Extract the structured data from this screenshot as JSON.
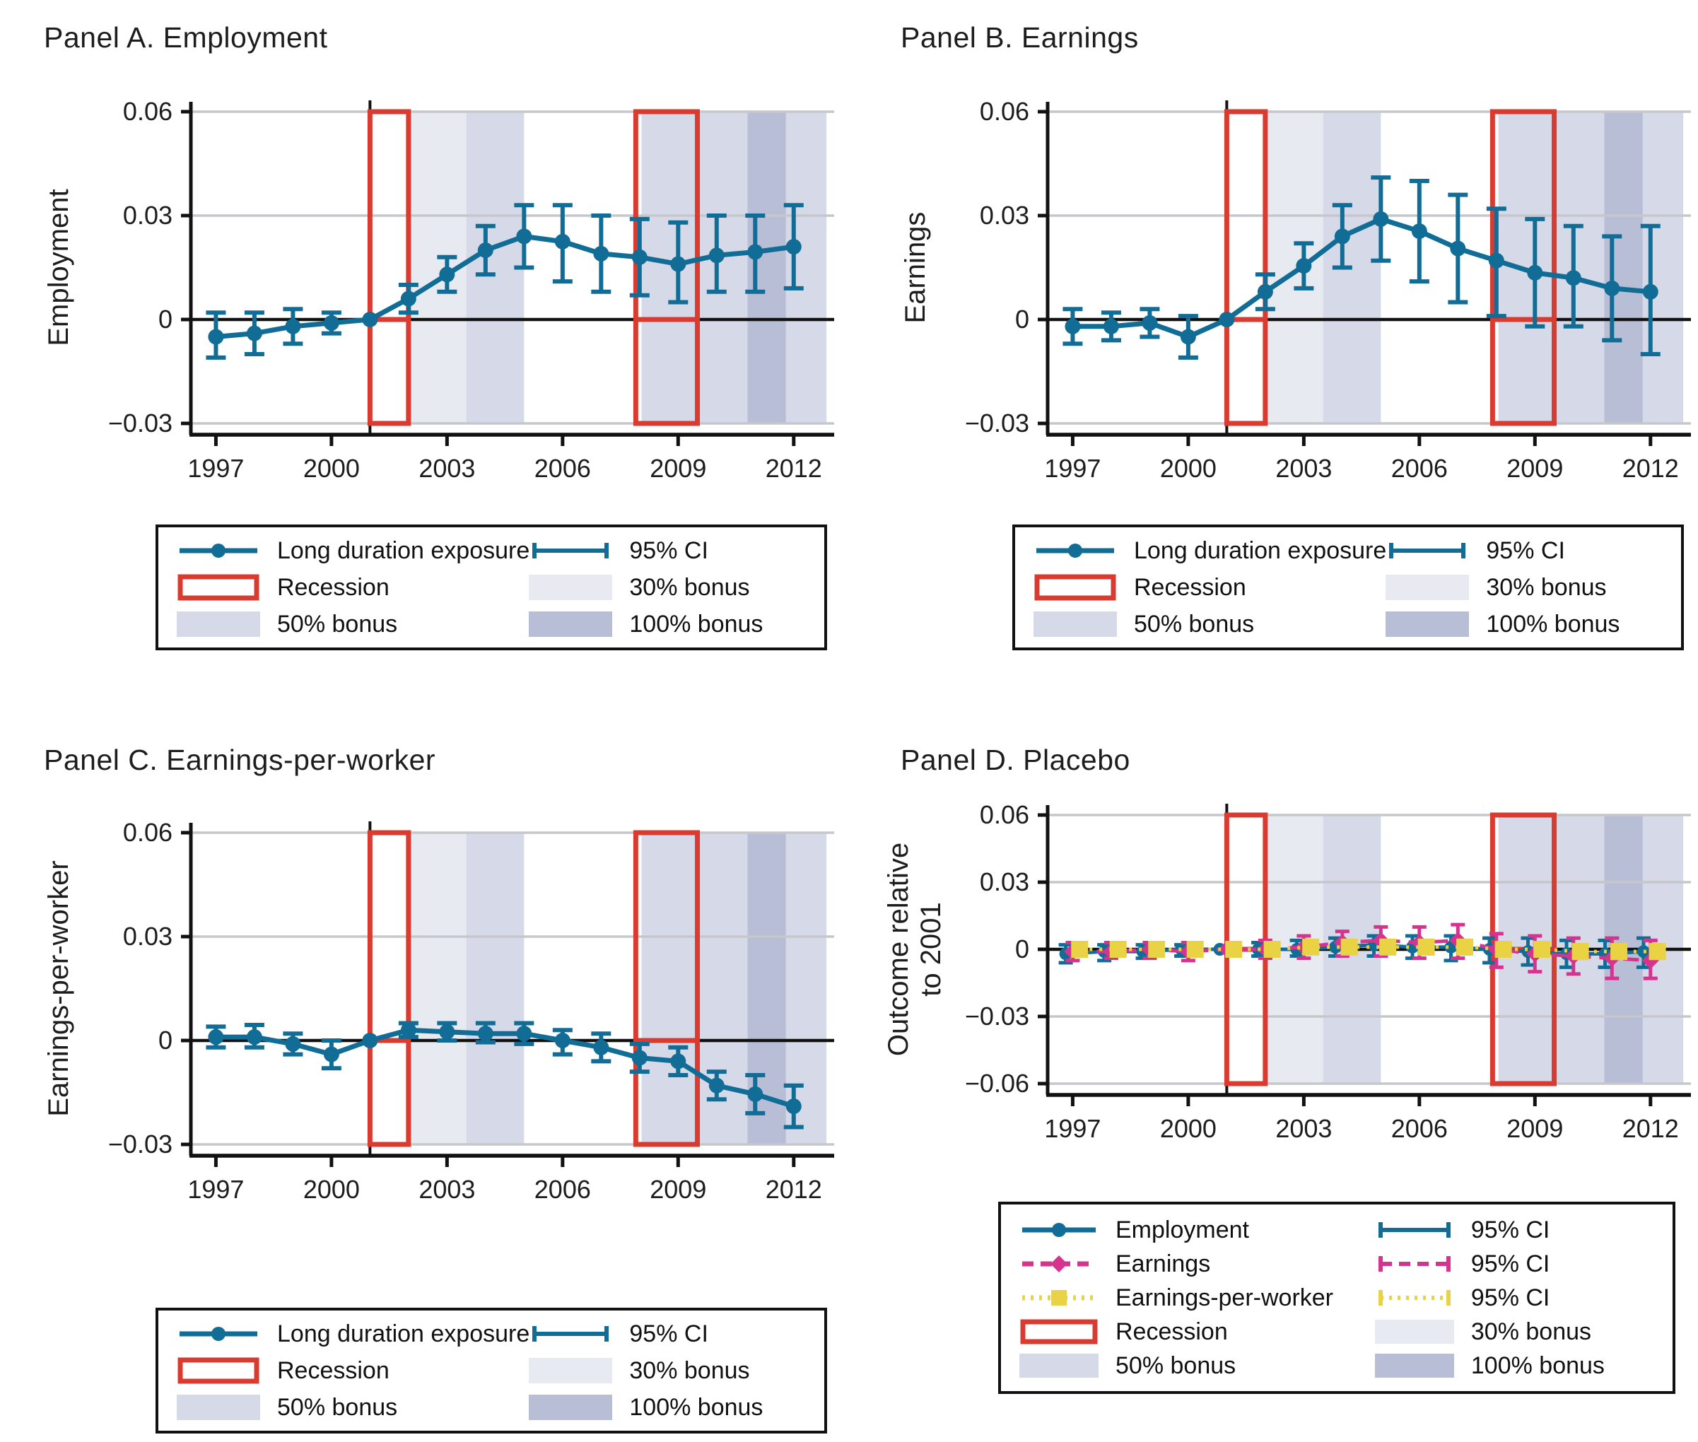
{
  "colors": {
    "blue": "#116d96",
    "red": "#d93b30",
    "magenta": "#d6338f",
    "yellow": "#e9d243",
    "bonus30": "#e8eaf1",
    "bonus50": "#d6d9e7",
    "bonus100": "#b8bed6",
    "grid": "#c6c7ca",
    "axis": "#111111",
    "text": "#1d1d1f"
  },
  "x_axis": {
    "ticks": [
      {
        "v": 1997,
        "label": "1997"
      },
      {
        "v": 2000,
        "label": "2000"
      },
      {
        "v": 2003,
        "label": "2003"
      },
      {
        "v": 2006,
        "label": "2006"
      },
      {
        "v": 2009,
        "label": "2009"
      },
      {
        "v": 2012,
        "label": "2012"
      }
    ],
    "min": 1996.35,
    "max": 2013.05,
    "reference_year": 2001
  },
  "panels": [
    {
      "id": "a",
      "chart_index": 0,
      "geom": "abc",
      "title": "Panel A. Employment",
      "ylabel_lines": [
        "Employment"
      ],
      "y_ticks": [
        {
          "v": 0.06,
          "label": "0.06"
        },
        {
          "v": 0.03,
          "label": "0.03"
        },
        {
          "v": 0,
          "label": "0"
        },
        {
          "v": -0.03,
          "label": "−0.03"
        }
      ],
      "legend_rows": [
        {
          "glyph": "series-blue",
          "label": "Long duration exposure"
        },
        {
          "glyph": "ci-blue",
          "label": "95% CI"
        },
        {
          "glyph": "recession",
          "label": "Recession"
        },
        {
          "glyph": "bonus30",
          "label": "30% bonus"
        },
        {
          "glyph": "bonus50",
          "label": "50% bonus"
        },
        {
          "glyph": "bonus100",
          "label": "100% bonus"
        }
      ]
    },
    {
      "id": "b",
      "chart_index": 1,
      "geom": "abc",
      "title": "Panel B. Earnings",
      "ylabel_lines": [
        "Earnings"
      ],
      "y_ticks": [
        {
          "v": 0.06,
          "label": "0.06"
        },
        {
          "v": 0.03,
          "label": "0.03"
        },
        {
          "v": 0,
          "label": "0"
        },
        {
          "v": -0.03,
          "label": "−0.03"
        }
      ],
      "legend_rows": [
        {
          "glyph": "series-blue",
          "label": "Long duration exposure"
        },
        {
          "glyph": "ci-blue",
          "label": "95% CI"
        },
        {
          "glyph": "recession",
          "label": "Recession"
        },
        {
          "glyph": "bonus30",
          "label": "30% bonus"
        },
        {
          "glyph": "bonus50",
          "label": "50% bonus"
        },
        {
          "glyph": "bonus100",
          "label": "100% bonus"
        }
      ]
    },
    {
      "id": "c",
      "chart_index": 2,
      "geom": "abc",
      "title": "Panel C. Earnings-per-worker",
      "ylabel_lines": [
        "Earnings-per-worker"
      ],
      "y_ticks": [
        {
          "v": 0.06,
          "label": "0.06"
        },
        {
          "v": 0.03,
          "label": "0.03"
        },
        {
          "v": 0,
          "label": "0"
        },
        {
          "v": -0.03,
          "label": "−0.03"
        }
      ],
      "legend_rows": [
        {
          "glyph": "series-blue",
          "label": "Long duration exposure"
        },
        {
          "glyph": "ci-blue",
          "label": "95% CI"
        },
        {
          "glyph": "recession",
          "label": "Recession"
        },
        {
          "glyph": "bonus30",
          "label": "30% bonus"
        },
        {
          "glyph": "bonus50",
          "label": "50% bonus"
        },
        {
          "glyph": "bonus100",
          "label": "100% bonus"
        }
      ]
    },
    {
      "id": "d",
      "chart_index": 3,
      "geom": "d",
      "title": "Panel D. Placebo",
      "ylabel_lines": [
        "Outcome relative",
        "to 2001"
      ],
      "y_ticks": [
        {
          "v": 0.06,
          "label": "0.06"
        },
        {
          "v": 0.03,
          "label": "0.03"
        },
        {
          "v": 0,
          "label": "0"
        },
        {
          "v": -0.03,
          "label": "−0.03"
        },
        {
          "v": -0.06,
          "label": "−0.06"
        }
      ],
      "legend_rows": [
        {
          "glyph": "series-blue",
          "label": "Employment"
        },
        {
          "glyph": "ci-blue",
          "label": "95% CI"
        },
        {
          "glyph": "series-magenta",
          "label": "Earnings"
        },
        {
          "glyph": "ci-magenta",
          "label": "95% CI"
        },
        {
          "glyph": "series-yellow",
          "label": "Earnings-per-worker"
        },
        {
          "glyph": "ci-yellow",
          "label": "95% CI"
        },
        {
          "glyph": "recession",
          "label": "Recession"
        },
        {
          "glyph": "bonus30",
          "label": "30% bonus"
        },
        {
          "glyph": "bonus50",
          "label": "50% bonus"
        },
        {
          "glyph": "bonus100",
          "label": "100% bonus"
        }
      ]
    }
  ],
  "chart_data": [
    {
      "type": "line",
      "title": "Panel A. Employment",
      "xlabel": "",
      "ylabel": "Employment",
      "x": [
        1997,
        1998,
        1999,
        2000,
        2001,
        2002,
        2003,
        2004,
        2005,
        2006,
        2007,
        2008,
        2009,
        2010,
        2011,
        2012
      ],
      "x_tick_labels": [
        "1997",
        "2000",
        "2003",
        "2006",
        "2009",
        "2012"
      ],
      "ylim": [
        -0.03,
        0.06
      ],
      "grid": true,
      "series": [
        {
          "name": "Long duration exposure",
          "color": "blue",
          "line": "solid",
          "marker": "circle",
          "dodge": 0,
          "values": [
            -0.005,
            -0.004,
            -0.002,
            -0.001,
            0,
            0.006,
            0.013,
            0.02,
            0.024,
            0.0225,
            0.019,
            0.018,
            0.016,
            0.0185,
            0.0195,
            0.021
          ],
          "ci_low": [
            -0.011,
            -0.01,
            -0.007,
            -0.004,
            0,
            0.002,
            0.008,
            0.013,
            0.015,
            0.011,
            0.008,
            0.007,
            0.005,
            0.008,
            0.008,
            0.009
          ],
          "ci_high": [
            0.002,
            0.002,
            0.003,
            0.002,
            0,
            0.01,
            0.018,
            0.027,
            0.033,
            0.033,
            0.03,
            0.029,
            0.028,
            0.03,
            0.03,
            0.033
          ],
          "ci_name": "95% CI"
        }
      ],
      "annotations": {
        "reference_year": 2001,
        "recessions": [
          {
            "from": 2001,
            "to": 2002
          },
          {
            "from": 2007.9,
            "to": 2009.5
          }
        ],
        "bonus_regions": [
          {
            "label": "30% bonus",
            "color": "bonus30",
            "from": 2002,
            "to": 2003.5
          },
          {
            "label": "50% bonus",
            "color": "bonus50",
            "from": 2003.5,
            "to": 2005
          },
          {
            "label": "50% bonus",
            "color": "bonus50",
            "from": 2008.05,
            "to": 2010.8
          },
          {
            "label": "100% bonus",
            "color": "bonus100",
            "from": 2010.8,
            "to": 2011.8
          },
          {
            "label": "50% bonus",
            "color": "bonus50",
            "from": 2011.8,
            "to": 2012.85
          }
        ]
      }
    },
    {
      "type": "line",
      "title": "Panel B. Earnings",
      "xlabel": "",
      "ylabel": "Earnings",
      "x": [
        1997,
        1998,
        1999,
        2000,
        2001,
        2002,
        2003,
        2004,
        2005,
        2006,
        2007,
        2008,
        2009,
        2010,
        2011,
        2012
      ],
      "x_tick_labels": [
        "1997",
        "2000",
        "2003",
        "2006",
        "2009",
        "2012"
      ],
      "ylim": [
        -0.03,
        0.06
      ],
      "grid": true,
      "series": [
        {
          "name": "Long duration exposure",
          "color": "blue",
          "line": "solid",
          "marker": "circle",
          "dodge": 0,
          "values": [
            -0.002,
            -0.002,
            -0.001,
            -0.005,
            0,
            0.008,
            0.0155,
            0.024,
            0.029,
            0.0255,
            0.0205,
            0.017,
            0.0135,
            0.012,
            0.009,
            0.008
          ],
          "ci_low": [
            -0.007,
            -0.006,
            -0.005,
            -0.011,
            0,
            0.003,
            0.009,
            0.015,
            0.017,
            0.011,
            0.005,
            0.001,
            -0.002,
            -0.002,
            -0.006,
            -0.01
          ],
          "ci_high": [
            0.003,
            0.002,
            0.003,
            0.001,
            0,
            0.013,
            0.022,
            0.033,
            0.041,
            0.04,
            0.036,
            0.032,
            0.029,
            0.027,
            0.024,
            0.027
          ],
          "ci_name": "95% CI"
        }
      ],
      "annotations": {
        "reference_year": 2001,
        "recessions": [
          {
            "from": 2001,
            "to": 2002
          },
          {
            "from": 2007.9,
            "to": 2009.5
          }
        ],
        "bonus_regions": [
          {
            "label": "30% bonus",
            "color": "bonus30",
            "from": 2002,
            "to": 2003.5
          },
          {
            "label": "50% bonus",
            "color": "bonus50",
            "from": 2003.5,
            "to": 2005
          },
          {
            "label": "50% bonus",
            "color": "bonus50",
            "from": 2008.05,
            "to": 2010.8
          },
          {
            "label": "100% bonus",
            "color": "bonus100",
            "from": 2010.8,
            "to": 2011.8
          },
          {
            "label": "50% bonus",
            "color": "bonus50",
            "from": 2011.8,
            "to": 2012.85
          }
        ]
      }
    },
    {
      "type": "line",
      "title": "Panel C. Earnings-per-worker",
      "xlabel": "",
      "ylabel": "Earnings-per-worker",
      "x": [
        1997,
        1998,
        1999,
        2000,
        2001,
        2002,
        2003,
        2004,
        2005,
        2006,
        2007,
        2008,
        2009,
        2010,
        2011,
        2012
      ],
      "x_tick_labels": [
        "1997",
        "2000",
        "2003",
        "2006",
        "2009",
        "2012"
      ],
      "ylim": [
        -0.03,
        0.06
      ],
      "grid": true,
      "series": [
        {
          "name": "Long duration exposure",
          "color": "blue",
          "line": "solid",
          "marker": "circle",
          "dodge": 0,
          "values": [
            0.001,
            0.001,
            -0.001,
            -0.004,
            0,
            0.003,
            0.0025,
            0.002,
            0.002,
            0,
            -0.002,
            -0.005,
            -0.006,
            -0.013,
            -0.0155,
            -0.019
          ],
          "ci_low": [
            -0.002,
            -0.002,
            -0.004,
            -0.008,
            0,
            0.001,
            0,
            -0.0005,
            -0.001,
            -0.004,
            -0.006,
            -0.009,
            -0.01,
            -0.017,
            -0.021,
            -0.025
          ],
          "ci_high": [
            0.004,
            0.0045,
            0.002,
            0,
            0,
            0.005,
            0.005,
            0.005,
            0.005,
            0.003,
            0.002,
            -0.001,
            -0.002,
            -0.009,
            -0.01,
            -0.013
          ],
          "ci_name": "95% CI"
        }
      ],
      "annotations": {
        "reference_year": 2001,
        "recessions": [
          {
            "from": 2001,
            "to": 2002
          },
          {
            "from": 2007.9,
            "to": 2009.5
          }
        ],
        "bonus_regions": [
          {
            "label": "30% bonus",
            "color": "bonus30",
            "from": 2002,
            "to": 2003.5
          },
          {
            "label": "50% bonus",
            "color": "bonus50",
            "from": 2003.5,
            "to": 2005
          },
          {
            "label": "50% bonus",
            "color": "bonus50",
            "from": 2008.05,
            "to": 2010.8
          },
          {
            "label": "100% bonus",
            "color": "bonus100",
            "from": 2010.8,
            "to": 2011.8
          },
          {
            "label": "50% bonus",
            "color": "bonus50",
            "from": 2011.8,
            "to": 2012.85
          }
        ]
      }
    },
    {
      "type": "line",
      "title": "Panel D. Placebo",
      "xlabel": "",
      "ylabel": "Outcome relative to 2001",
      "x": [
        1997,
        1998,
        1999,
        2000,
        2001,
        2002,
        2003,
        2004,
        2005,
        2006,
        2007,
        2008,
        2009,
        2010,
        2011,
        2012
      ],
      "x_tick_labels": [
        "1997",
        "2000",
        "2003",
        "2006",
        "2009",
        "2012"
      ],
      "ylim": [
        -0.06,
        0.06
      ],
      "grid": true,
      "series": [
        {
          "name": "Employment",
          "color": "blue",
          "line": "solid",
          "marker": "circle",
          "dodge": -0.18,
          "values": [
            -0.002,
            -0.001,
            -0.001,
            0,
            0,
            0,
            0,
            0.001,
            0.002,
            0.001,
            0.001,
            0,
            -0.001,
            -0.002,
            -0.002,
            -0.001
          ],
          "ci_low": [
            -0.006,
            -0.005,
            -0.004,
            -0.003,
            0,
            -0.003,
            -0.003,
            -0.003,
            -0.003,
            -0.004,
            -0.005,
            -0.006,
            -0.007,
            -0.008,
            -0.008,
            -0.008
          ],
          "ci_high": [
            0.002,
            0.002,
            0.002,
            0.002,
            0,
            0.003,
            0.004,
            0.005,
            0.006,
            0.006,
            0.006,
            0.005,
            0.005,
            0.004,
            0.004,
            0.005
          ],
          "ci_name": "95% CI"
        },
        {
          "name": "Earnings",
          "color": "magenta",
          "line": "dashed",
          "marker": "diamond",
          "dodge": 0,
          "values": [
            -0.001,
            -0.001,
            0,
            -0.001,
            0,
            0,
            0.001,
            0.003,
            0.004,
            0.003,
            0.004,
            0,
            -0.002,
            -0.003,
            -0.004,
            -0.005
          ],
          "ci_low": [
            -0.005,
            -0.004,
            -0.004,
            -0.005,
            0,
            -0.004,
            -0.004,
            -0.003,
            -0.003,
            -0.004,
            -0.004,
            -0.008,
            -0.01,
            -0.011,
            -0.013,
            -0.013
          ],
          "ci_high": [
            0.003,
            0.003,
            0.003,
            0.003,
            0,
            0.004,
            0.006,
            0.008,
            0.01,
            0.01,
            0.011,
            0.007,
            0.006,
            0.005,
            0.005,
            0.004
          ],
          "ci_name": "95% CI"
        },
        {
          "name": "Earnings-per-worker",
          "color": "yellow",
          "line": "dotted",
          "marker": "square",
          "dodge": 0.18,
          "values": [
            0,
            0,
            0,
            0,
            0,
            0,
            0.001,
            0.001,
            0.001,
            0.001,
            0.001,
            0,
            0,
            -0.001,
            -0.001,
            -0.001
          ],
          "ci_low": [
            -0.002,
            -0.002,
            -0.002,
            -0.002,
            0,
            -0.002,
            -0.001,
            -0.001,
            -0.001,
            -0.002,
            -0.002,
            -0.003,
            -0.003,
            -0.004,
            -0.004,
            -0.004
          ],
          "ci_high": [
            0.002,
            0.002,
            0.002,
            0.002,
            0,
            0.002,
            0.003,
            0.003,
            0.004,
            0.004,
            0.004,
            0.003,
            0.003,
            0.002,
            0.002,
            0.002
          ],
          "ci_name": "95% CI"
        }
      ],
      "annotations": {
        "reference_year": 2001,
        "recessions": [
          {
            "from": 2001,
            "to": 2002
          },
          {
            "from": 2007.9,
            "to": 2009.5
          }
        ],
        "bonus_regions": [
          {
            "label": "30% bonus",
            "color": "bonus30",
            "from": 2002,
            "to": 2003.5
          },
          {
            "label": "50% bonus",
            "color": "bonus50",
            "from": 2003.5,
            "to": 2005
          },
          {
            "label": "50% bonus",
            "color": "bonus50",
            "from": 2008.05,
            "to": 2010.8
          },
          {
            "label": "100% bonus",
            "color": "bonus100",
            "from": 2010.8,
            "to": 2011.8
          },
          {
            "label": "50% bonus",
            "color": "bonus50",
            "from": 2011.8,
            "to": 2012.85
          }
        ]
      }
    }
  ]
}
